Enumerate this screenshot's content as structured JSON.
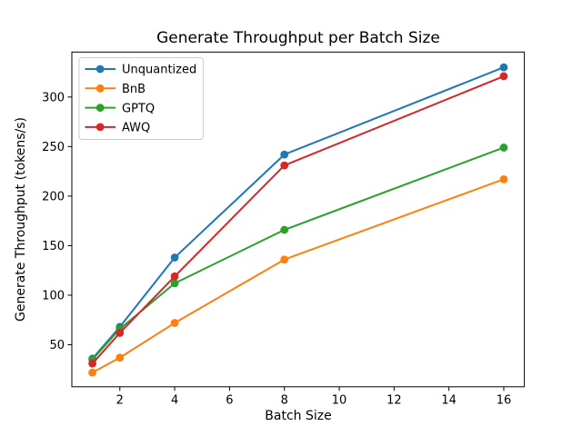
{
  "chart_data": {
    "type": "line",
    "title": "Generate Throughput per Batch Size",
    "xlabel": "Batch Size",
    "ylabel": "Generate Throughput (tokens/s)",
    "x": [
      1,
      2,
      4,
      8,
      16
    ],
    "series": [
      {
        "name": "Unquantized",
        "color": "#1f77b4",
        "values": [
          36,
          68,
          138,
          242,
          330
        ]
      },
      {
        "name": "BnB",
        "color": "#ff7f0e",
        "values": [
          22,
          37,
          72,
          136,
          217
        ]
      },
      {
        "name": "GPTQ",
        "color": "#2ca02c",
        "values": [
          35,
          66,
          112,
          166,
          249
        ]
      },
      {
        "name": "AWQ",
        "color": "#d62728",
        "values": [
          31,
          62,
          119,
          231,
          321
        ]
      }
    ],
    "xlim": [
      0.25,
      16.75
    ],
    "ylim": [
      7.6,
      345.4
    ],
    "xticks": [
      2,
      4,
      6,
      8,
      10,
      12,
      14,
      16
    ],
    "yticks": [
      50,
      100,
      150,
      200,
      250,
      300
    ],
    "legend_position": "upper left",
    "grid": false,
    "marker": "o",
    "axis_color": "#000000",
    "background_color": "#ffffff"
  }
}
